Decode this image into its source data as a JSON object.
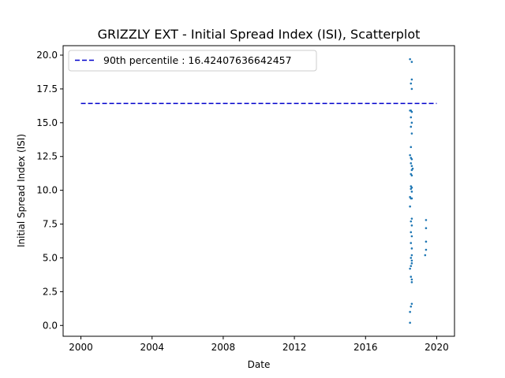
{
  "chart_data": {
    "type": "scatter",
    "title": "GRIZZLY EXT - Initial Spread Index (ISI), Scatterplot",
    "xlabel": "Date",
    "ylabel": "Initial Spread Index (ISI)",
    "xlim": [
      1999.0,
      2021.0
    ],
    "ylim": [
      -0.8,
      20.7
    ],
    "x_ticks": [
      2000,
      2004,
      2008,
      2012,
      2016,
      2020
    ],
    "x_tick_labels": [
      "2000",
      "2004",
      "2008",
      "2012",
      "2016",
      "2020"
    ],
    "y_ticks": [
      0,
      2.5,
      5,
      7.5,
      10,
      12.5,
      15,
      17.5,
      20
    ],
    "y_tick_labels": [
      "0.0",
      "2.5",
      "5.0",
      "7.5",
      "10.0",
      "12.5",
      "15.0",
      "17.5",
      "20.0"
    ],
    "grid": false,
    "legend_position": "top-left",
    "point_color": "#1f77b4",
    "reference_line": {
      "label": "90th percentile : 16.42407636642457",
      "y": 16.42407636642457,
      "x_start": 2000.0,
      "x_end": 2020.0,
      "color": "#0000cc",
      "style": "dashed"
    },
    "series": [
      {
        "points": [
          [
            2018.5,
            19.7
          ],
          [
            2018.6,
            19.5
          ],
          [
            2018.6,
            18.2
          ],
          [
            2018.55,
            17.9
          ],
          [
            2018.6,
            17.5
          ],
          [
            2018.5,
            15.9
          ],
          [
            2018.55,
            15.9
          ],
          [
            2018.6,
            15.8
          ],
          [
            2018.55,
            15.4
          ],
          [
            2018.6,
            15.0
          ],
          [
            2018.55,
            14.7
          ],
          [
            2018.6,
            14.2
          ],
          [
            2018.55,
            13.2
          ],
          [
            2018.5,
            12.6
          ],
          [
            2018.55,
            12.4
          ],
          [
            2018.6,
            12.3
          ],
          [
            2018.55,
            12.0
          ],
          [
            2018.6,
            11.8
          ],
          [
            2018.65,
            11.6
          ],
          [
            2018.6,
            11.5
          ],
          [
            2018.55,
            11.2
          ],
          [
            2018.6,
            11.1
          ],
          [
            2018.55,
            10.3
          ],
          [
            2018.6,
            10.2
          ],
          [
            2018.55,
            10.1
          ],
          [
            2018.6,
            9.9
          ],
          [
            2018.5,
            9.5
          ],
          [
            2018.55,
            9.4
          ],
          [
            2018.6,
            9.4
          ],
          [
            2018.5,
            8.8
          ],
          [
            2018.6,
            7.9
          ],
          [
            2018.55,
            7.7
          ],
          [
            2018.6,
            7.4
          ],
          [
            2018.55,
            6.9
          ],
          [
            2018.6,
            6.6
          ],
          [
            2018.55,
            6.1
          ],
          [
            2018.6,
            5.7
          ],
          [
            2018.6,
            5.2
          ],
          [
            2018.55,
            5.0
          ],
          [
            2018.6,
            4.8
          ],
          [
            2018.6,
            4.6
          ],
          [
            2018.55,
            4.4
          ],
          [
            2018.5,
            4.2
          ],
          [
            2018.55,
            3.6
          ],
          [
            2018.6,
            3.4
          ],
          [
            2018.6,
            3.2
          ],
          [
            2018.6,
            1.6
          ],
          [
            2018.55,
            1.4
          ],
          [
            2018.5,
            1.0
          ],
          [
            2018.5,
            0.2
          ],
          [
            2019.4,
            7.8
          ],
          [
            2019.4,
            7.2
          ],
          [
            2019.4,
            6.2
          ],
          [
            2019.4,
            5.6
          ],
          [
            2019.35,
            5.2
          ]
        ]
      }
    ]
  }
}
